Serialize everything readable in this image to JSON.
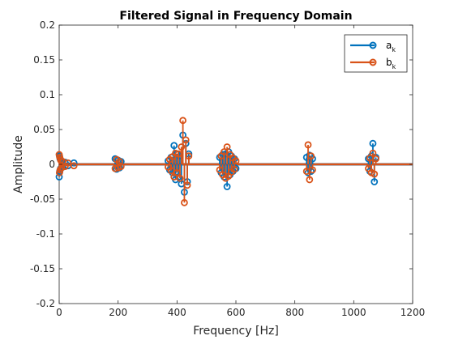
{
  "chart_data": {
    "type": "stem",
    "title": "Filtered Signal in Frequency Domain",
    "xlabel": "Frequency [Hz]",
    "ylabel": "Amplitude",
    "xlim": [
      0,
      1200
    ],
    "ylim": [
      -0.2,
      0.2
    ],
    "xticks": [
      0,
      200,
      400,
      600,
      800,
      1000,
      1200
    ],
    "yticks": [
      -0.2,
      -0.15,
      -0.1,
      -0.05,
      0,
      0.05,
      0.1,
      0.15,
      0.2
    ],
    "ytick_labels": [
      "-0.2",
      "-0.15",
      "-0.1",
      "-0.05",
      "0",
      "0.05",
      "0.1",
      "0.15",
      "0.2"
    ],
    "grid": false,
    "legend_position": "top-right",
    "series": [
      {
        "name": "a_k",
        "legend_base": "a",
        "legend_sub": "k",
        "color": "#0072BD",
        "x": [
          0,
          1,
          2,
          3,
          5,
          8,
          12,
          20,
          30,
          50,
          190,
          195,
          200,
          205,
          210,
          370,
          375,
          380,
          385,
          390,
          395,
          400,
          405,
          410,
          415,
          420,
          425,
          430,
          435,
          440,
          545,
          550,
          555,
          560,
          565,
          570,
          575,
          580,
          585,
          590,
          595,
          600,
          840,
          845,
          850,
          855,
          860,
          1050,
          1055,
          1060,
          1065,
          1070,
          1075
        ],
        "values": [
          -0.018,
          0.012,
          -0.01,
          0.008,
          -0.006,
          0.005,
          -0.004,
          0.003,
          -0.002,
          0.002,
          0.008,
          -0.007,
          0.006,
          -0.005,
          0.004,
          0.005,
          -0.008,
          0.01,
          -0.012,
          0.027,
          -0.022,
          0.015,
          -0.018,
          0.012,
          -0.028,
          0.042,
          -0.04,
          0.03,
          -0.025,
          0.015,
          0.01,
          -0.012,
          0.014,
          -0.018,
          0.015,
          -0.032,
          0.018,
          -0.015,
          0.012,
          -0.01,
          0.008,
          -0.006,
          0.01,
          -0.012,
          0.013,
          -0.01,
          0.008,
          0.008,
          -0.01,
          0.012,
          0.03,
          -0.025,
          0.01
        ]
      },
      {
        "name": "b_k",
        "legend_base": "b",
        "legend_sub": "k",
        "color": "#D95319",
        "x": [
          0,
          1,
          2,
          3,
          5,
          8,
          12,
          20,
          30,
          50,
          190,
          195,
          200,
          205,
          210,
          370,
          375,
          380,
          385,
          390,
          395,
          400,
          405,
          410,
          415,
          420,
          425,
          430,
          435,
          440,
          545,
          550,
          555,
          560,
          565,
          570,
          575,
          580,
          585,
          590,
          595,
          600,
          840,
          845,
          850,
          855,
          860,
          1050,
          1055,
          1060,
          1065,
          1070,
          1075
        ],
        "values": [
          0.014,
          -0.012,
          0.01,
          -0.008,
          0.006,
          -0.005,
          0.004,
          -0.003,
          0.002,
          -0.002,
          -0.006,
          0.007,
          -0.005,
          0.004,
          -0.003,
          -0.004,
          0.007,
          -0.009,
          0.011,
          -0.018,
          0.016,
          -0.012,
          0.015,
          -0.02,
          0.025,
          0.063,
          -0.055,
          0.035,
          -0.03,
          0.012,
          -0.008,
          0.012,
          -0.015,
          0.018,
          -0.02,
          0.025,
          -0.017,
          0.014,
          -0.011,
          0.009,
          -0.007,
          0.005,
          -0.01,
          0.028,
          -0.022,
          0.012,
          -0.008,
          -0.006,
          0.009,
          -0.012,
          0.016,
          -0.014,
          0.008
        ]
      }
    ]
  }
}
